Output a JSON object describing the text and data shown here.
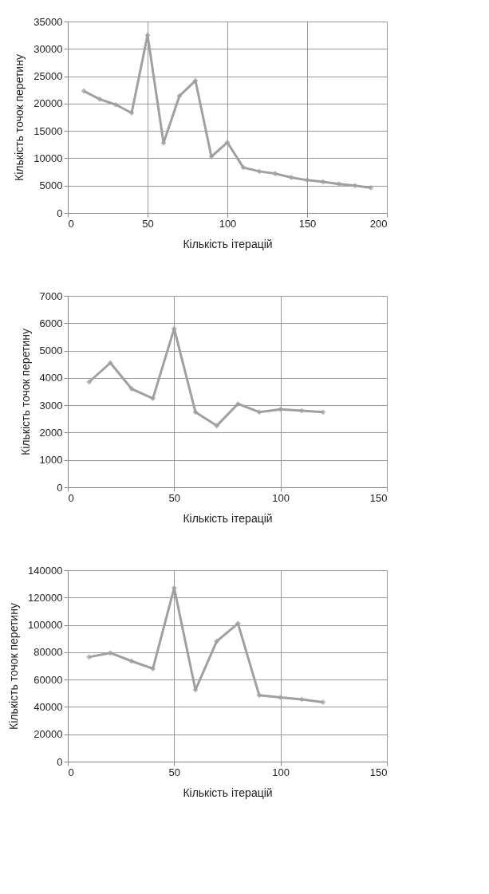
{
  "chart_data": [
    {
      "type": "line",
      "xlabel": "Кількість ітерацій",
      "ylabel": "Кількість точок перетину",
      "x": [
        10,
        20,
        30,
        40,
        50,
        60,
        70,
        80,
        90,
        100,
        110,
        120,
        130,
        140,
        150,
        160,
        170,
        180,
        190
      ],
      "series": [
        {
          "color": "#a0a0a0",
          "values": [
            22300,
            20800,
            19800,
            18300,
            32500,
            12800,
            21400,
            24200,
            10300,
            12900,
            8300,
            7600,
            7200,
            6500,
            6000,
            5700,
            5300,
            5000,
            4600
          ]
        }
      ],
      "xlim": [
        0,
        200
      ],
      "xticks": [
        0,
        50,
        100,
        150,
        200
      ],
      "ylim": [
        0,
        35000
      ],
      "yticks": [
        0,
        5000,
        10000,
        15000,
        20000,
        25000,
        30000,
        35000
      ],
      "grid": true,
      "marker": "diamond",
      "line_style": "solid"
    },
    {
      "type": "line",
      "xlabel": "Кількість ітерацій",
      "ylabel": "Кількість точок перетину",
      "x": [
        10,
        20,
        30,
        40,
        50,
        60,
        70,
        80,
        90,
        100,
        110,
        120
      ],
      "series": [
        {
          "color": "#a0a0a0",
          "values": [
            3850,
            4550,
            3600,
            3250,
            5800,
            2750,
            2250,
            3050,
            2750,
            2850,
            2800,
            2750
          ]
        }
      ],
      "xlim": [
        0,
        150
      ],
      "xticks": [
        0,
        50,
        100,
        150
      ],
      "ylim": [
        0,
        7000
      ],
      "yticks": [
        0,
        1000,
        2000,
        3000,
        4000,
        5000,
        6000,
        7000
      ],
      "grid": true,
      "marker": "diamond",
      "line_style": "solid"
    },
    {
      "type": "line",
      "xlabel": "Кількість ітерацій",
      "ylabel": "Кількість точок перетину",
      "x": [
        10,
        20,
        30,
        40,
        50,
        60,
        70,
        80,
        90,
        100,
        110,
        120
      ],
      "series": [
        {
          "color": "#a0a0a0",
          "values": [
            76500,
            79500,
            73500,
            68000,
            127000,
            52500,
            88000,
            101000,
            48500,
            47000,
            45500,
            43500
          ]
        }
      ],
      "xlim": [
        0,
        150
      ],
      "xticks": [
        0,
        50,
        100,
        150
      ],
      "ylim": [
        0,
        140000
      ],
      "yticks": [
        0,
        20000,
        40000,
        60000,
        80000,
        100000,
        120000,
        140000
      ],
      "grid": true,
      "marker": "diamond",
      "line_style": "solid"
    }
  ]
}
